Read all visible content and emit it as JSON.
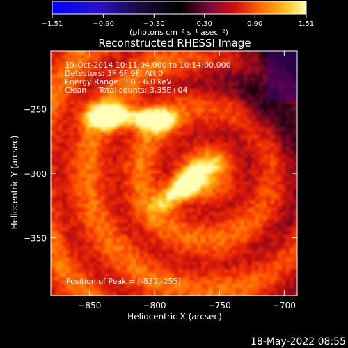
{
  "chart_data": {
    "type": "heatmap",
    "title": "Reconstructed RHESSI Image",
    "xlabel": "Heliocentric X (arcsec)",
    "ylabel": "Heliocentric Y (arcsec)",
    "xlim": [
      -880,
      -690
    ],
    "ylim": [
      -395,
      -205
    ],
    "x_ticks": [
      -850,
      -800,
      -750,
      -700
    ],
    "x_tick_labels": [
      "−850",
      "−800",
      "−750",
      "−700"
    ],
    "y_ticks": [
      -250,
      -300,
      -350
    ],
    "y_tick_labels": [
      "−250",
      "−300",
      "−350"
    ],
    "colorbar": {
      "min": -1.51,
      "max": 1.51,
      "ticks": [
        -1.51,
        -0.9,
        -0.3,
        0.3,
        0.9,
        1.51
      ],
      "tick_labels": [
        "−1.51",
        "−0.90",
        "−0.30",
        "0.30",
        "0.90",
        "1.51"
      ],
      "unit_label": "(photons cm⁻² s⁻¹ asec⁻²)"
    },
    "annotations": [
      "19-Oct-2014 10:11:04.000 to 10:14:00.000",
      "Detectors: 3F 6F 9F, Att 0",
      "Energy Range: 3.0 - 6.0 keV",
      "Clean     Total counts: 3.35E+04"
    ],
    "peak_label": "Position of Peak = [-832,-255]",
    "peak": {
      "x": -832,
      "y": -255
    },
    "sources": [
      {
        "x": -835,
        "y": -256,
        "sx": 12,
        "sy": 6,
        "amp": 1.05
      },
      {
        "x": -800,
        "y": -258,
        "sx": 10,
        "sy": 6,
        "amp": 0.9
      },
      {
        "x": -775,
        "y": -308,
        "sx": 18,
        "sy": 6,
        "angle": 38,
        "amp": 0.85
      }
    ],
    "background_level": 0.55
  },
  "footer_timestamp": "18-May-2022 08:55"
}
